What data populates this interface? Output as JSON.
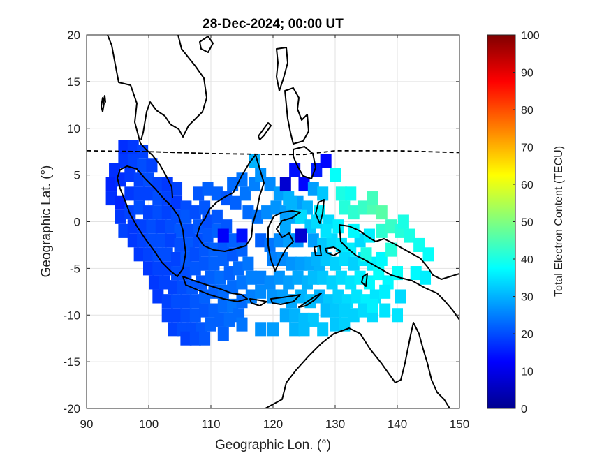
{
  "chart_data": {
    "type": "heatmap",
    "title": "28-Dec-2024; 00:00 UT",
    "xlabel": "Geographic Lon. (°)",
    "ylabel": "Geographic Lat. (°)",
    "colorbar_label": "Total Electron Content (TECU)",
    "xlim": [
      90,
      150
    ],
    "ylim": [
      -20,
      20
    ],
    "xticks": [
      "90",
      "100",
      "110",
      "120",
      "130",
      "140",
      "150"
    ],
    "yticks": [
      "20",
      "15",
      "10",
      "5",
      "0",
      "-5",
      "-10",
      "-15",
      "-20"
    ],
    "clim": [
      0,
      100
    ],
    "cticks": [
      "100",
      "90",
      "80",
      "70",
      "60",
      "50",
      "40",
      "30",
      "20",
      "10",
      "0"
    ],
    "colormap": "jet",
    "grid": true,
    "cells": [
      [
        96,
        8,
        17
      ],
      [
        97.5,
        8,
        18
      ],
      [
        99,
        7.5,
        19
      ],
      [
        96,
        6.5,
        18
      ],
      [
        94.5,
        5.5,
        17
      ],
      [
        97.5,
        6.5,
        19
      ],
      [
        99,
        6,
        20
      ],
      [
        100.5,
        6,
        19
      ],
      [
        94,
        4,
        16
      ],
      [
        95.5,
        4.5,
        17
      ],
      [
        97,
        5,
        18
      ],
      [
        98.5,
        4.5,
        19
      ],
      [
        100,
        4.5,
        20
      ],
      [
        101.5,
        4,
        19
      ],
      [
        103,
        4,
        18
      ],
      [
        104.5,
        3.5,
        19
      ],
      [
        94,
        2.5,
        17
      ],
      [
        95.5,
        2,
        16
      ],
      [
        97,
        3,
        18
      ],
      [
        98.5,
        3,
        19
      ],
      [
        100,
        3,
        19
      ],
      [
        101.5,
        2.5,
        20
      ],
      [
        103,
        2.5,
        19
      ],
      [
        104.5,
        2,
        18
      ],
      [
        106,
        1.5,
        20
      ],
      [
        95.5,
        0.5,
        18
      ],
      [
        97,
        1,
        19
      ],
      [
        98.5,
        1.5,
        20
      ],
      [
        100,
        1,
        19
      ],
      [
        101.5,
        1,
        20
      ],
      [
        103,
        1,
        19
      ],
      [
        104.5,
        0.5,
        20
      ],
      [
        106,
        0.5,
        21
      ],
      [
        107.5,
        1,
        20
      ],
      [
        109,
        1.5,
        21
      ],
      [
        96,
        -1,
        19
      ],
      [
        97.5,
        -0.5,
        18
      ],
      [
        99,
        -0.5,
        19
      ],
      [
        100.5,
        -0.5,
        20
      ],
      [
        102,
        -0.5,
        19
      ],
      [
        103.5,
        -0.5,
        20
      ],
      [
        105,
        -1,
        21
      ],
      [
        106.5,
        -1,
        20
      ],
      [
        108,
        -0.5,
        21
      ],
      [
        109.5,
        0,
        20
      ],
      [
        111,
        0.5,
        21
      ],
      [
        97.5,
        -2,
        18
      ],
      [
        99,
        -2,
        19
      ],
      [
        100.5,
        -2,
        20
      ],
      [
        102,
        -2,
        20
      ],
      [
        103.5,
        -2,
        19
      ],
      [
        105,
        -2.5,
        20
      ],
      [
        106.5,
        -2.5,
        21
      ],
      [
        108,
        -2,
        20
      ],
      [
        109.5,
        -1.5,
        21
      ],
      [
        111,
        -1,
        22
      ],
      [
        112.5,
        -0.5,
        21
      ],
      [
        98.5,
        -3.5,
        18
      ],
      [
        100,
        -3.5,
        19
      ],
      [
        101.5,
        -3.5,
        20
      ],
      [
        103,
        -3.5,
        20
      ],
      [
        104.5,
        -4,
        19
      ],
      [
        106,
        -4,
        21
      ],
      [
        107.5,
        -3.5,
        20
      ],
      [
        109,
        -3,
        21
      ],
      [
        110.5,
        -3,
        22
      ],
      [
        112,
        -2.5,
        21
      ],
      [
        113.5,
        -2,
        22
      ],
      [
        100,
        -5,
        18
      ],
      [
        101.5,
        -5,
        19
      ],
      [
        103,
        -5,
        19
      ],
      [
        104.5,
        -5.5,
        20
      ],
      [
        106,
        -5.5,
        20
      ],
      [
        107.5,
        -5,
        21
      ],
      [
        109,
        -4.5,
        21
      ],
      [
        110.5,
        -4.5,
        22
      ],
      [
        112,
        -4,
        22
      ],
      [
        113.5,
        -3.5,
        21
      ],
      [
        115,
        -3,
        22
      ],
      [
        101,
        -6.5,
        18
      ],
      [
        102.5,
        -6.5,
        19
      ],
      [
        104,
        -7,
        19
      ],
      [
        105.5,
        -7,
        20
      ],
      [
        107,
        -7,
        21
      ],
      [
        108.5,
        -6.5,
        21
      ],
      [
        110,
        -6,
        22
      ],
      [
        111.5,
        -6,
        23
      ],
      [
        113,
        -5.5,
        22
      ],
      [
        114.5,
        -5,
        23
      ],
      [
        116,
        -4.5,
        24
      ],
      [
        101.5,
        -8,
        18
      ],
      [
        103,
        -8.5,
        19
      ],
      [
        104.5,
        -8.5,
        20
      ],
      [
        106,
        -8.5,
        20
      ],
      [
        107.5,
        -8.5,
        21
      ],
      [
        109,
        -8,
        22
      ],
      [
        110.5,
        -7.5,
        22
      ],
      [
        112,
        -7.5,
        23
      ],
      [
        113.5,
        -7,
        23
      ],
      [
        115,
        -6.5,
        24
      ],
      [
        116.5,
        -6,
        25
      ],
      [
        103,
        -10,
        19
      ],
      [
        104.5,
        -10,
        19
      ],
      [
        106,
        -10,
        20
      ],
      [
        107.5,
        -10,
        21
      ],
      [
        109,
        -9.5,
        21
      ],
      [
        110.5,
        -9.5,
        22
      ],
      [
        112,
        -9,
        23
      ],
      [
        113.5,
        -9,
        24
      ],
      [
        115,
        -8.5,
        23
      ],
      [
        116.5,
        -8,
        25
      ],
      [
        118,
        -7.5,
        26
      ],
      [
        104,
        -11.5,
        19
      ],
      [
        105.5,
        -11.5,
        20
      ],
      [
        107,
        -11.5,
        20
      ],
      [
        108.5,
        -11.5,
        21
      ],
      [
        110,
        -11,
        22
      ],
      [
        111.5,
        -10.5,
        22
      ],
      [
        113,
        -10.5,
        23
      ],
      [
        114.5,
        -10,
        23
      ],
      [
        106,
        -12.5,
        19
      ],
      [
        107.5,
        -12.5,
        20
      ],
      [
        109,
        -12.5,
        21
      ],
      [
        112,
        -12,
        22
      ],
      [
        115,
        -11,
        24
      ],
      [
        118,
        -11.5,
        27
      ],
      [
        120,
        -11.5,
        28
      ],
      [
        108,
        3,
        21
      ],
      [
        109.5,
        3.5,
        22
      ],
      [
        111,
        3,
        22
      ],
      [
        112.5,
        2.5,
        21
      ],
      [
        114,
        2,
        22
      ],
      [
        115.5,
        3,
        24
      ],
      [
        117,
        4,
        25
      ],
      [
        115,
        4.5,
        24
      ],
      [
        113.5,
        4,
        23
      ],
      [
        117,
        6.5,
        30
      ],
      [
        118,
        5,
        27
      ],
      [
        119.5,
        4,
        26
      ],
      [
        121,
        3,
        28
      ],
      [
        122.5,
        2.5,
        30
      ],
      [
        124,
        2,
        28
      ],
      [
        125.5,
        1.5,
        30
      ],
      [
        116,
        1,
        23
      ],
      [
        117.5,
        0.5,
        24
      ],
      [
        119,
        1,
        26
      ],
      [
        120.5,
        1.5,
        27
      ],
      [
        122,
        1,
        28
      ],
      [
        123.5,
        0.5,
        29
      ],
      [
        112,
        -1.5,
        12
      ],
      [
        115,
        -1.5,
        14
      ],
      [
        118,
        -2,
        22
      ],
      [
        119.5,
        -2.5,
        24
      ],
      [
        121,
        -2,
        26
      ],
      [
        122.5,
        -2,
        28
      ],
      [
        124,
        -2,
        27
      ],
      [
        120,
        -4,
        25
      ],
      [
        121.5,
        -4,
        26
      ],
      [
        123,
        -4.5,
        27
      ],
      [
        124.5,
        -4.5,
        28
      ],
      [
        126,
        -4.5,
        29
      ],
      [
        127.5,
        -5,
        30
      ],
      [
        118,
        -6,
        25
      ],
      [
        119.5,
        -6.5,
        26
      ],
      [
        121,
        -6,
        27
      ],
      [
        122.5,
        -6.5,
        28
      ],
      [
        124,
        -6,
        29
      ],
      [
        125.5,
        -6.5,
        30
      ],
      [
        120,
        -8,
        27
      ],
      [
        121.5,
        -8,
        28
      ],
      [
        123,
        -8.5,
        29
      ],
      [
        124.5,
        -8,
        30
      ],
      [
        126,
        -8.5,
        31
      ],
      [
        122,
        -10,
        29
      ],
      [
        123.5,
        -10,
        30
      ],
      [
        125,
        -10.5,
        31
      ],
      [
        126.5,
        -10.5,
        32
      ],
      [
        123.5,
        -11.5,
        30
      ],
      [
        125,
        -11.5,
        31
      ],
      [
        128,
        -11.5,
        32
      ],
      [
        123.5,
        5.5,
        14
      ],
      [
        127,
        5.5,
        15
      ],
      [
        128.5,
        6.5,
        13
      ],
      [
        125,
        4,
        13
      ],
      [
        126.5,
        3.5,
        28
      ],
      [
        128,
        3,
        32
      ],
      [
        122,
        4,
        8
      ],
      [
        123,
        2,
        30
      ],
      [
        124.5,
        0.5,
        34
      ],
      [
        126,
        -0.5,
        32
      ],
      [
        127.5,
        1,
        36
      ],
      [
        129,
        0,
        34
      ],
      [
        130.5,
        -0.5,
        36
      ],
      [
        122,
        -0.5,
        29
      ],
      [
        124.5,
        -1.5,
        8
      ],
      [
        126.5,
        -2,
        28
      ],
      [
        128,
        -2.5,
        32
      ],
      [
        129.5,
        -2,
        34
      ],
      [
        131,
        -2.5,
        35
      ],
      [
        132.5,
        -3,
        36
      ],
      [
        134,
        -2,
        34
      ],
      [
        135.5,
        -1.5,
        36
      ],
      [
        127,
        -4,
        30
      ],
      [
        128.5,
        -4,
        32
      ],
      [
        130,
        -4.5,
        33
      ],
      [
        131.5,
        -4,
        34
      ],
      [
        133,
        -4.5,
        33
      ],
      [
        134.5,
        -4,
        35
      ],
      [
        136,
        -4.5,
        36
      ],
      [
        137.5,
        -4,
        37
      ],
      [
        126.5,
        -6,
        31
      ],
      [
        128,
        -6,
        32
      ],
      [
        129.5,
        -6.5,
        33
      ],
      [
        131,
        -6,
        34
      ],
      [
        132.5,
        -6.5,
        35
      ],
      [
        134,
        -6,
        36
      ],
      [
        135.5,
        -6.5,
        37
      ],
      [
        137,
        -5.5,
        38
      ],
      [
        138.5,
        -6.5,
        37
      ],
      [
        140,
        -5.5,
        38
      ],
      [
        127.5,
        -8,
        30
      ],
      [
        129,
        -8.5,
        32
      ],
      [
        130.5,
        -8,
        33
      ],
      [
        132,
        -8.5,
        34
      ],
      [
        133.5,
        -8,
        35
      ],
      [
        135,
        -8.5,
        36
      ],
      [
        136.5,
        -8,
        35
      ],
      [
        138,
        -7.5,
        36
      ],
      [
        128.5,
        -9.5,
        31
      ],
      [
        130,
        -9.5,
        32
      ],
      [
        131.5,
        -9.5,
        33
      ],
      [
        133,
        -10,
        33
      ],
      [
        134.5,
        -9.5,
        34
      ],
      [
        136,
        -10,
        34
      ],
      [
        138,
        -9.5,
        35
      ],
      [
        140.5,
        -8,
        34
      ],
      [
        130,
        -11,
        32
      ],
      [
        131.5,
        -11,
        33
      ],
      [
        136,
        -9,
        36
      ],
      [
        140,
        -10,
        35
      ],
      [
        130,
        5,
        38
      ],
      [
        131,
        3,
        40
      ],
      [
        132.5,
        3,
        39
      ],
      [
        131.5,
        1.5,
        41
      ],
      [
        133,
        1,
        42
      ],
      [
        134.5,
        1.5,
        43
      ],
      [
        136,
        1.5,
        45
      ],
      [
        136,
        2.5,
        44
      ],
      [
        137.5,
        1,
        46
      ],
      [
        137.5,
        -1,
        42
      ],
      [
        139,
        -0.5,
        43
      ],
      [
        140.5,
        -1,
        41
      ],
      [
        142,
        -1.5,
        40
      ],
      [
        143.5,
        -2.5,
        39
      ],
      [
        145,
        -3.5,
        38
      ],
      [
        141,
        0,
        40
      ],
      [
        135,
        -3.5,
        40
      ],
      [
        143,
        -5.5,
        37
      ],
      [
        144.5,
        -6,
        36
      ],
      [
        139,
        -3,
        41
      ],
      [
        133,
        -1,
        37
      ],
      [
        128.5,
        -1,
        35
      ],
      [
        127,
        0,
        34
      ]
    ]
  }
}
